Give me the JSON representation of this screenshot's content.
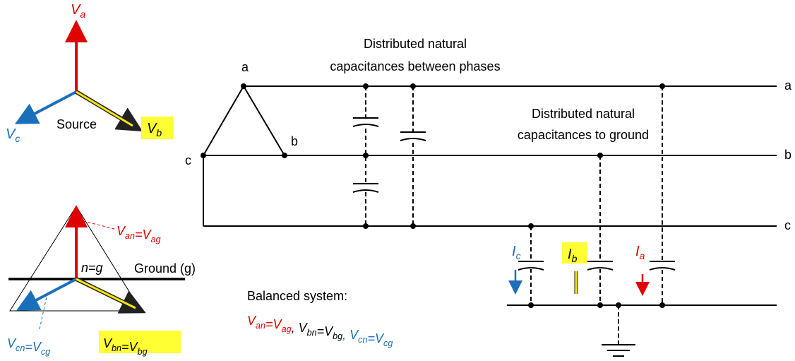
{
  "source_phasor": {
    "va": {
      "main": "V",
      "sub": "a"
    },
    "vb": {
      "main": "V",
      "sub": "b"
    },
    "vc": {
      "main": "V",
      "sub": "c"
    },
    "label": "Source"
  },
  "ground_phasor": {
    "van": [
      {
        "main": "V",
        "sub": "an"
      },
      {
        "main": "=V",
        "sub": "ag"
      }
    ],
    "vbn": [
      {
        "main": "V",
        "sub": "bn"
      },
      {
        "main": "=V",
        "sub": "bg"
      }
    ],
    "vcn": [
      {
        "main": "V",
        "sub": "cn"
      },
      {
        "main": "=V",
        "sub": "cg"
      }
    ],
    "neutral": "n=g",
    "ground": "Ground (g)"
  },
  "circuit": {
    "source_nodes": {
      "a": "a",
      "b": "b",
      "c": "c"
    },
    "line_ends": {
      "a": "a",
      "b": "b",
      "c": "c"
    },
    "between_phases": [
      "Distributed natural",
      "capacitances between phases"
    ],
    "to_ground": [
      "Distributed natural",
      "capacitances to ground"
    ],
    "currents": {
      "ia": {
        "main": "I",
        "sub": "a"
      },
      "ib": {
        "main": "I",
        "sub": "b"
      },
      "ic": {
        "main": "I",
        "sub": "c"
      }
    }
  },
  "balanced": {
    "title": "Balanced system:",
    "items": [
      {
        "main": "V",
        "sub": "an",
        "color": "#e00000"
      },
      {
        "main": "=V",
        "sub": "ag",
        "color": "#e00000"
      },
      {
        "main": ", V",
        "sub": "bn",
        "color": "#000000"
      },
      {
        "main": "=V",
        "sub": "bg",
        "color": "#000000"
      },
      {
        "main": ", V",
        "sub": "cn",
        "color": "#1a6fba"
      },
      {
        "main": "=V",
        "sub": "cg",
        "color": "#1a6fba"
      }
    ]
  }
}
